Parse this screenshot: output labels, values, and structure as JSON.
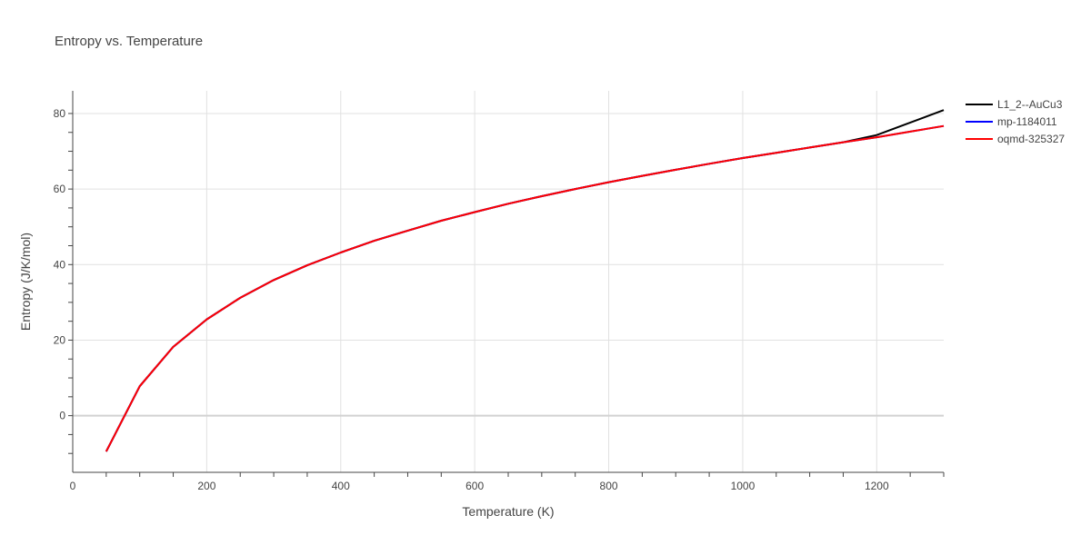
{
  "chart_data": {
    "type": "line",
    "title": "Entropy vs. Temperature",
    "xlabel": "Temperature (K)",
    "ylabel": "Entropy (J/K/mol)",
    "xlim": [
      0,
      1300
    ],
    "ylim": [
      -15,
      86
    ],
    "x_ticks": [
      0,
      200,
      400,
      600,
      800,
      1000,
      1200
    ],
    "y_ticks": [
      0,
      20,
      40,
      60,
      80
    ],
    "grid": true,
    "legend_position": "right",
    "series": [
      {
        "name": "L1_2--AuCu3",
        "color": "#000000",
        "x": [
          50,
          100,
          150,
          200,
          250,
          300,
          350,
          400,
          450,
          500,
          550,
          600,
          650,
          700,
          750,
          800,
          850,
          900,
          950,
          1000,
          1050,
          1100,
          1150,
          1200,
          1250,
          1300
        ],
        "y": [
          -9.5,
          7.8,
          18.2,
          25.5,
          31.2,
          35.9,
          39.8,
          43.2,
          46.3,
          49.0,
          51.6,
          53.9,
          56.1,
          58.1,
          60.0,
          61.8,
          63.5,
          65.1,
          66.7,
          68.2,
          69.6,
          71.0,
          72.4,
          74.3,
          77.6,
          80.9
        ]
      },
      {
        "name": "mp-1184011",
        "color": "#0000ff",
        "x": [
          50,
          100,
          150,
          200,
          250,
          300,
          350,
          400,
          450,
          500,
          550,
          600,
          650,
          700,
          750,
          800,
          850,
          900,
          950,
          1000,
          1050,
          1100,
          1150,
          1200,
          1250,
          1300
        ],
        "y": [
          -9.5,
          7.8,
          18.2,
          25.5,
          31.2,
          35.9,
          39.8,
          43.2,
          46.3,
          49.0,
          51.6,
          53.9,
          56.1,
          58.1,
          60.0,
          61.8,
          63.5,
          65.1,
          66.7,
          68.2,
          69.6,
          71.0,
          72.4,
          73.7,
          75.2,
          76.7
        ]
      },
      {
        "name": "oqmd-325327",
        "color": "#ff0000",
        "x": [
          50,
          100,
          150,
          200,
          250,
          300,
          350,
          400,
          450,
          500,
          550,
          600,
          650,
          700,
          750,
          800,
          850,
          900,
          950,
          1000,
          1050,
          1100,
          1150,
          1200,
          1250,
          1300
        ],
        "y": [
          -9.5,
          7.8,
          18.2,
          25.5,
          31.2,
          35.9,
          39.8,
          43.2,
          46.3,
          49.0,
          51.6,
          53.9,
          56.1,
          58.1,
          60.0,
          61.8,
          63.5,
          65.1,
          66.7,
          68.2,
          69.6,
          71.0,
          72.4,
          73.7,
          75.2,
          76.7
        ]
      }
    ]
  }
}
